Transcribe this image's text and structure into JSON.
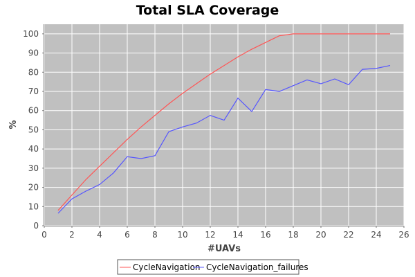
{
  "chart_data": {
    "type": "line",
    "title": "Total SLA Coverage",
    "xlabel": "#UAVs",
    "ylabel": "%",
    "xlim": [
      0,
      26
    ],
    "ylim": [
      0,
      105
    ],
    "xticks": [
      0,
      2,
      4,
      6,
      8,
      10,
      12,
      14,
      16,
      18,
      20,
      22,
      24,
      26
    ],
    "yticks": [
      0,
      10,
      20,
      30,
      40,
      50,
      60,
      70,
      80,
      90,
      100
    ],
    "grid": true,
    "legend_position": "bottom",
    "plot_background": "#c0c0c0",
    "grid_color": "#ffffff",
    "x": [
      1,
      2,
      3,
      4,
      5,
      6,
      7,
      8,
      9,
      10,
      11,
      12,
      13,
      14,
      15,
      16,
      17,
      18,
      19,
      20,
      21,
      22,
      23,
      24,
      25
    ],
    "series": [
      {
        "name": "CycleNavigation",
        "color": "#ff5555",
        "values": [
          8,
          16,
          24,
          31,
          38,
          45,
          51.5,
          57.5,
          63.5,
          69,
          74,
          79,
          83.5,
          88,
          92,
          95.5,
          99,
          100,
          100,
          100,
          100,
          100,
          100,
          100,
          100
        ]
      },
      {
        "name": "CycleNavigation_failures",
        "color": "#5555ff",
        "values": [
          6.5,
          14,
          18,
          21.5,
          27.5,
          36,
          35,
          36.5,
          49,
          51.5,
          53.5,
          57.5,
          55,
          66.5,
          59.5,
          71,
          70,
          73,
          76,
          74,
          76.5,
          73.5,
          81.5,
          82,
          83.5
        ]
      }
    ]
  }
}
